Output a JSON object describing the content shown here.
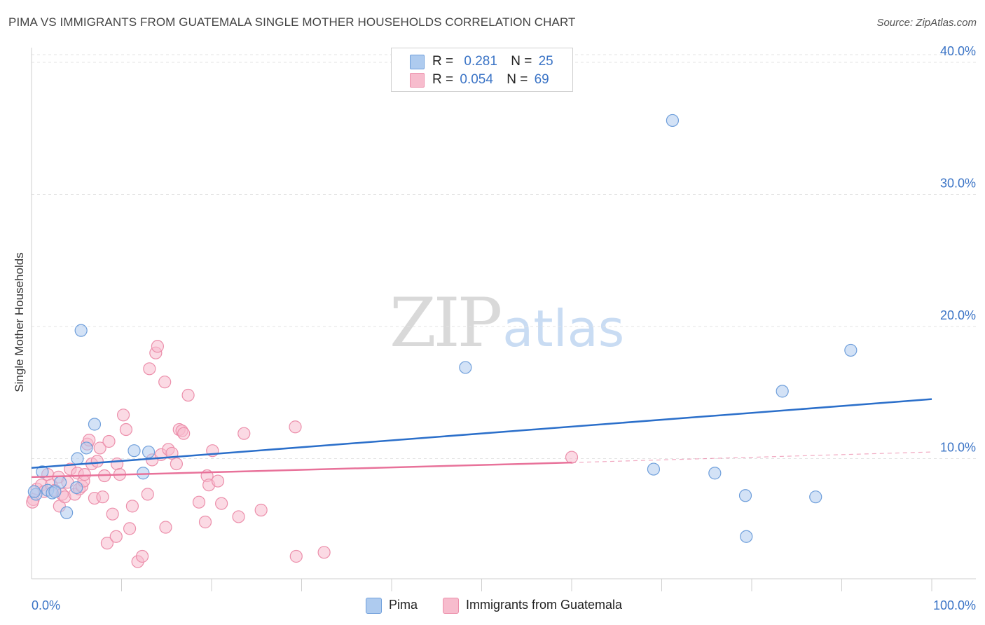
{
  "header": {
    "title": "PIMA VS IMMIGRANTS FROM GUATEMALA SINGLE MOTHER HOUSEHOLDS CORRELATION CHART",
    "source": "Source: ZipAtlas.com"
  },
  "legend_top": {
    "rows": [
      {
        "r_label": "R =",
        "r_value": "0.281",
        "n_label": "N =",
        "n_value": "25"
      },
      {
        "r_label": "R =",
        "r_value": "0.054",
        "n_label": "N =",
        "n_value": "69"
      }
    ]
  },
  "legend_bottom": {
    "items": [
      "Pima",
      "Immigrants from Guatemala"
    ]
  },
  "watermark": {
    "zip": "ZIP",
    "atlas": "atlas"
  },
  "colors": {
    "pima_fill": "#aecbef",
    "pima_stroke": "#6f9fdb",
    "pima_line": "#2b6fca",
    "guat_fill": "#f7bccd",
    "guat_stroke": "#ec8fab",
    "guat_line": "#e8729a",
    "tick_label": "#3b74c6",
    "grid": "#e3e3e3"
  },
  "chart_data": {
    "type": "scatter",
    "title": "PIMA VS IMMIGRANTS FROM GUATEMALA SINGLE MOTHER HOUSEHOLDS CORRELATION CHART",
    "xlabel": "",
    "ylabel": "Single Mother Households",
    "xlim": [
      0,
      100
    ],
    "ylim": [
      0,
      41
    ],
    "x_tick_labels": [
      "0.0%",
      "100.0%"
    ],
    "y_ticks": [
      10,
      20,
      30,
      40
    ],
    "y_tick_labels": [
      "10.0%",
      "20.0%",
      "30.0%",
      "40.0%"
    ],
    "grid": true,
    "legend_placement": "top-center",
    "series": [
      {
        "name": "Pima",
        "r": 0.281,
        "n": 25,
        "trend": {
          "x": [
            0,
            100
          ],
          "y": [
            9.3,
            14.5
          ]
        },
        "points": [
          [
            0.5,
            7.3
          ],
          [
            1.2,
            9.0
          ],
          [
            1.8,
            7.6
          ],
          [
            2.3,
            7.4
          ],
          [
            3.2,
            8.2
          ],
          [
            3.9,
            5.9
          ],
          [
            5.0,
            7.8
          ],
          [
            5.1,
            10.0
          ],
          [
            5.5,
            19.7
          ],
          [
            6.1,
            10.8
          ],
          [
            7.0,
            12.6
          ],
          [
            11.4,
            10.6
          ],
          [
            12.4,
            8.9
          ],
          [
            13.0,
            10.5
          ],
          [
            48.2,
            16.9
          ],
          [
            69.1,
            9.2
          ],
          [
            71.2,
            35.6
          ],
          [
            75.9,
            8.9
          ],
          [
            79.3,
            7.2
          ],
          [
            79.4,
            4.1
          ],
          [
            83.4,
            15.1
          ],
          [
            87.1,
            7.1
          ],
          [
            91.0,
            18.2
          ],
          [
            0.3,
            7.5
          ],
          [
            2.6,
            7.5
          ]
        ]
      },
      {
        "name": "Immigrants from Guatemala",
        "r": 0.054,
        "n": 69,
        "trend": {
          "x": [
            0,
            60
          ],
          "y": [
            8.6,
            9.7
          ]
        },
        "trend_extension": {
          "x": [
            60,
            100
          ],
          "y": [
            9.7,
            10.5
          ]
        },
        "points": [
          [
            0.2,
            6.9
          ],
          [
            0.6,
            7.7
          ],
          [
            1.1,
            8.0
          ],
          [
            1.4,
            7.5
          ],
          [
            1.8,
            8.8
          ],
          [
            2.2,
            8.0
          ],
          [
            2.6,
            7.6
          ],
          [
            3.0,
            8.6
          ],
          [
            3.1,
            6.4
          ],
          [
            3.4,
            7.3
          ],
          [
            3.7,
            7.1
          ],
          [
            4.0,
            8.2
          ],
          [
            4.3,
            9.2
          ],
          [
            4.8,
            7.3
          ],
          [
            5.1,
            8.9
          ],
          [
            5.3,
            7.7
          ],
          [
            5.6,
            7.9
          ],
          [
            5.8,
            8.3
          ],
          [
            5.9,
            8.8
          ],
          [
            6.2,
            11.1
          ],
          [
            6.4,
            11.4
          ],
          [
            6.7,
            9.6
          ],
          [
            7.0,
            7.0
          ],
          [
            7.3,
            9.8
          ],
          [
            7.6,
            10.8
          ],
          [
            7.9,
            7.1
          ],
          [
            8.1,
            8.7
          ],
          [
            8.4,
            3.6
          ],
          [
            8.6,
            11.3
          ],
          [
            9.0,
            5.8
          ],
          [
            9.4,
            4.1
          ],
          [
            9.5,
            9.6
          ],
          [
            9.8,
            8.8
          ],
          [
            10.2,
            13.3
          ],
          [
            10.5,
            12.2
          ],
          [
            10.9,
            4.7
          ],
          [
            11.2,
            6.4
          ],
          [
            11.8,
            2.2
          ],
          [
            12.3,
            2.6
          ],
          [
            12.9,
            7.3
          ],
          [
            13.1,
            16.8
          ],
          [
            13.4,
            9.9
          ],
          [
            13.8,
            18.0
          ],
          [
            14.0,
            18.5
          ],
          [
            14.4,
            10.3
          ],
          [
            14.8,
            15.8
          ],
          [
            14.9,
            4.8
          ],
          [
            15.2,
            10.7
          ],
          [
            15.6,
            10.4
          ],
          [
            16.1,
            9.6
          ],
          [
            16.4,
            12.2
          ],
          [
            16.7,
            12.1
          ],
          [
            16.9,
            11.9
          ],
          [
            17.4,
            14.8
          ],
          [
            18.6,
            6.7
          ],
          [
            19.3,
            5.2
          ],
          [
            19.5,
            8.7
          ],
          [
            19.7,
            8.0
          ],
          [
            20.1,
            10.6
          ],
          [
            20.7,
            8.3
          ],
          [
            21.1,
            6.6
          ],
          [
            23.0,
            5.6
          ],
          [
            23.6,
            11.9
          ],
          [
            25.5,
            6.1
          ],
          [
            29.3,
            12.4
          ],
          [
            29.4,
            2.6
          ],
          [
            32.5,
            2.9
          ],
          [
            60.0,
            10.1
          ],
          [
            0.1,
            6.7
          ]
        ]
      }
    ]
  }
}
